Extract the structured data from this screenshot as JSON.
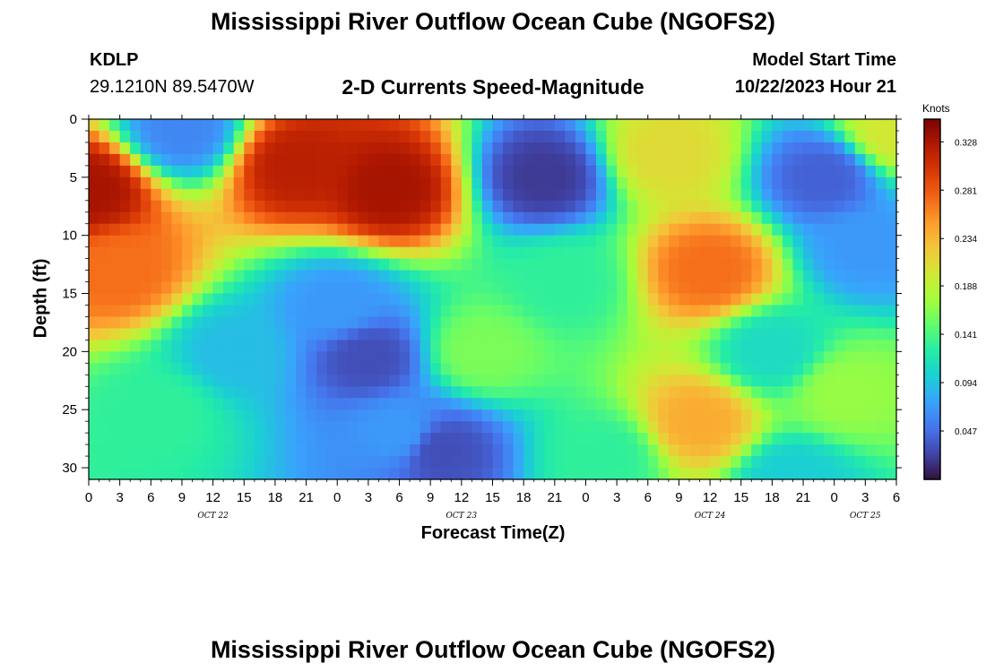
{
  "title": "Mississippi River Outflow Ocean Cube (NGOFS2)",
  "station": {
    "id": "KDLP",
    "coords": "29.1210N  89.5470W"
  },
  "subtitle": "2-D Currents Speed-Magnitude",
  "model_start": {
    "label": "Model Start Time",
    "value": "10/22/2023 Hour 21"
  },
  "footer_title": "Mississippi River Outflow Ocean Cube (NGOFS2)",
  "colors": {
    "colormap": [
      "#30123b",
      "#4145ab",
      "#4675ed",
      "#39a2fc",
      "#1bcfd4",
      "#24eca6",
      "#61fc6c",
      "#a4fc3b",
      "#d1e834",
      "#f3c63a",
      "#fe9b2d",
      "#f36315",
      "#d93806",
      "#b11901",
      "#7a0403"
    ]
  },
  "chart_data": {
    "type": "heatmap",
    "title": "2-D Currents Speed-Magnitude",
    "xlabel": "Forecast Time(Z)",
    "ylabel": "Depth (ft)",
    "colorbar_label": "Knots",
    "x_range": [
      0,
      78
    ],
    "y_range": [
      0,
      31
    ],
    "y_inverted": true,
    "x_ticks": [
      0,
      3,
      6,
      9,
      12,
      15,
      18,
      21,
      24,
      27,
      30,
      33,
      36,
      39,
      42,
      45,
      48,
      51,
      54,
      57,
      60,
      63,
      66,
      69,
      72,
      75,
      78
    ],
    "x_tick_labels": [
      "0",
      "3",
      "6",
      "9",
      "12",
      "15",
      "18",
      "21",
      "0",
      "3",
      "6",
      "9",
      "12",
      "15",
      "18",
      "21",
      "0",
      "3",
      "6",
      "9",
      "12",
      "15",
      "18",
      "21",
      "0",
      "3",
      "6"
    ],
    "y_ticks": [
      0,
      5,
      10,
      15,
      20,
      25,
      30
    ],
    "y_tick_labels": [
      "0",
      "5",
      "10",
      "15",
      "20",
      "25",
      "30"
    ],
    "date_labels": [
      {
        "x": 12,
        "text": "OCT 22"
      },
      {
        "x": 36,
        "text": "OCT 23"
      },
      {
        "x": 60,
        "text": "OCT 24"
      },
      {
        "x": 75,
        "text": "OCT 25"
      }
    ],
    "color_range": [
      0.0,
      0.35
    ],
    "colorbar_ticks": [
      "0.328",
      "0.281",
      "0.234",
      "0.188",
      "0.141",
      "0.094",
      "0.047"
    ],
    "field_features": [
      {
        "time": 0,
        "depth": 6,
        "speed": 0.33
      },
      {
        "time": 3,
        "depth": 13,
        "speed": 0.27
      },
      {
        "time": 7,
        "depth": 25,
        "speed": 0.13
      },
      {
        "time": 9,
        "depth": 1,
        "speed": 0.06
      },
      {
        "time": 14,
        "depth": 20,
        "speed": 0.09
      },
      {
        "time": 20,
        "depth": 4,
        "speed": 0.32
      },
      {
        "time": 29,
        "depth": 6,
        "speed": 0.33
      },
      {
        "time": 24,
        "depth": 16,
        "speed": 0.07
      },
      {
        "time": 27,
        "depth": 20.5,
        "speed": 0.03
      },
      {
        "time": 34,
        "depth": 28.5,
        "speed": 0.03
      },
      {
        "time": 30,
        "depth": 27,
        "speed": 0.07
      },
      {
        "time": 38,
        "depth": 20,
        "speed": 0.16
      },
      {
        "time": 44,
        "depth": 5,
        "speed": 0.02
      },
      {
        "time": 46,
        "depth": 14,
        "speed": 0.13
      },
      {
        "time": 56,
        "depth": 3,
        "speed": 0.21
      },
      {
        "time": 60,
        "depth": 13,
        "speed": 0.27
      },
      {
        "time": 59,
        "depth": 26,
        "speed": 0.24
      },
      {
        "time": 66,
        "depth": 20,
        "speed": 0.11
      },
      {
        "time": 71,
        "depth": 5,
        "speed": 0.04
      },
      {
        "time": 75,
        "depth": 11,
        "speed": 0.07
      },
      {
        "time": 73,
        "depth": 23.5,
        "speed": 0.17
      },
      {
        "time": 78,
        "depth": 1,
        "speed": 0.2
      },
      {
        "time": 50,
        "depth": 29,
        "speed": 0.13
      },
      {
        "time": 68,
        "depth": 31,
        "speed": 0.1
      }
    ],
    "grid": false,
    "legend": "right colorbar"
  }
}
